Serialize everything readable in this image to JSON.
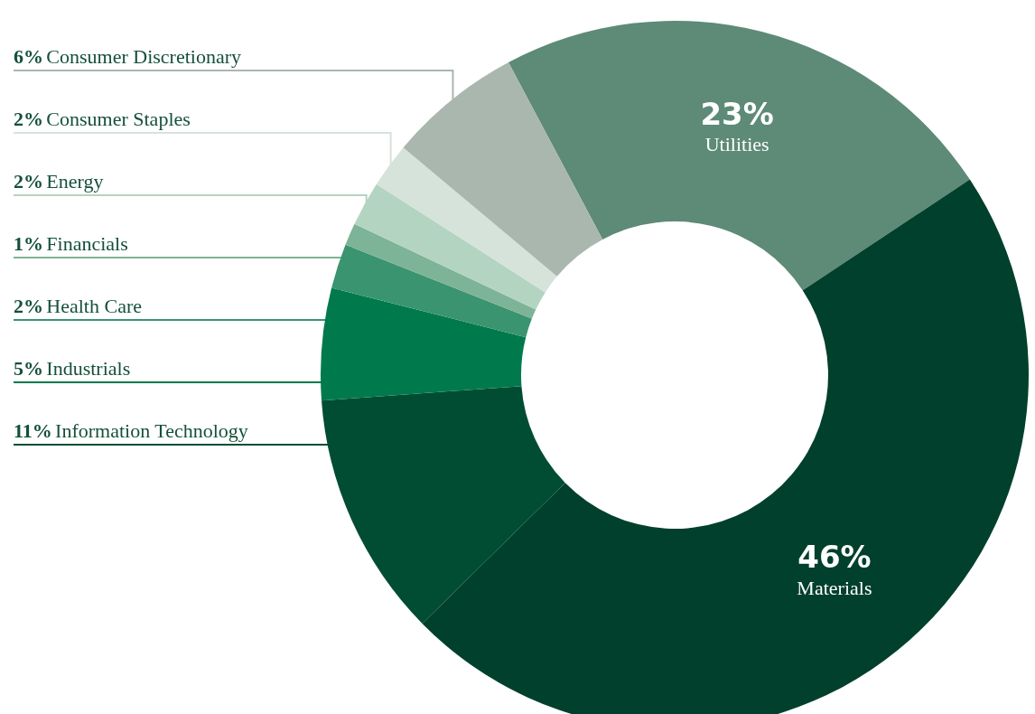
{
  "chart_data": {
    "type": "donut",
    "categories": [
      "Utilities",
      "Materials",
      "Information Technology",
      "Industrials",
      "Health Care",
      "Financials",
      "Energy",
      "Consumer Staples",
      "Consumer Discretionary"
    ],
    "values": [
      23,
      46,
      11,
      5,
      2,
      1,
      2,
      2,
      6
    ],
    "value_labels": [
      "23%",
      "46%",
      "11%",
      "5%",
      "2%",
      "1%",
      "2%",
      "2%",
      "6%"
    ],
    "colors": [
      "#5e8a78",
      "#00402c",
      "#004d33",
      "#007a4d",
      "#3a9470",
      "#7db396",
      "#b3d4c1",
      "#d6e3da",
      "#aab7ae"
    ]
  }
}
